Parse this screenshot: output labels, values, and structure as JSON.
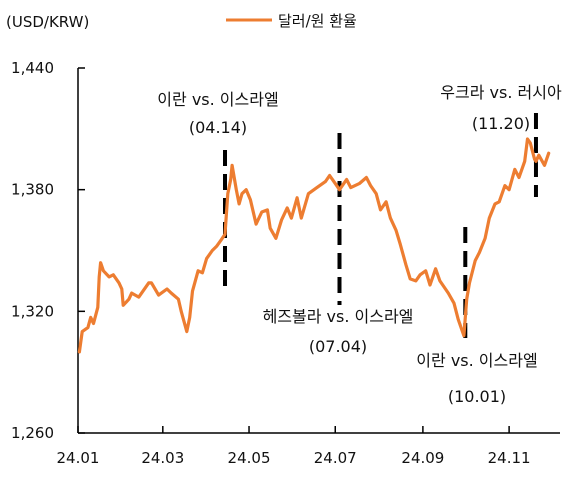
{
  "chart_data": {
    "type": "line",
    "title": "",
    "ylabel": "(USD/KRW)",
    "xlabel": "",
    "ylim": [
      1260,
      1440
    ],
    "yticks": [
      1260,
      1320,
      1380,
      1440
    ],
    "ytick_labels": [
      "1,260",
      "1,320",
      "1,380",
      "1,440"
    ],
    "xticks": [
      "24.01",
      "24.03",
      "24.05",
      "24.07",
      "24.09",
      "24.11"
    ],
    "legend": {
      "position": "top-center",
      "label": "달러/원 환율"
    },
    "grid": false,
    "series": [
      {
        "name": "달러/원 환율",
        "color": "#ED7D31",
        "points": [
          [
            "2024-01-02",
            1300
          ],
          [
            "2024-01-04",
            1310
          ],
          [
            "2024-01-08",
            1312
          ],
          [
            "2024-01-10",
            1317
          ],
          [
            "2024-01-12",
            1314
          ],
          [
            "2024-01-15",
            1322
          ],
          [
            "2024-01-16",
            1337
          ],
          [
            "2024-01-17",
            1344
          ],
          [
            "2024-01-19",
            1340
          ],
          [
            "2024-01-23",
            1337
          ],
          [
            "2024-01-26",
            1338
          ],
          [
            "2024-01-30",
            1334
          ],
          [
            "2024-02-01",
            1331
          ],
          [
            "2024-02-02",
            1323
          ],
          [
            "2024-02-06",
            1326
          ],
          [
            "2024-02-08",
            1329
          ],
          [
            "2024-02-13",
            1327
          ],
          [
            "2024-02-16",
            1330
          ],
          [
            "2024-02-20",
            1334
          ],
          [
            "2024-02-22",
            1334
          ],
          [
            "2024-02-27",
            1328
          ],
          [
            "2024-03-04",
            1331
          ],
          [
            "2024-03-07",
            1329
          ],
          [
            "2024-03-12",
            1326
          ],
          [
            "2024-03-14",
            1320
          ],
          [
            "2024-03-18",
            1310
          ],
          [
            "2024-03-20",
            1317
          ],
          [
            "2024-03-22",
            1330
          ],
          [
            "2024-03-26",
            1340
          ],
          [
            "2024-03-29",
            1339
          ],
          [
            "2024-04-01",
            1346
          ],
          [
            "2024-04-05",
            1350
          ],
          [
            "2024-04-08",
            1352
          ],
          [
            "2024-04-11",
            1355
          ],
          [
            "2024-04-14",
            1358
          ],
          [
            "2024-04-16",
            1378
          ],
          [
            "2024-04-18",
            1385
          ],
          [
            "2024-04-19",
            1392
          ],
          [
            "2024-04-22",
            1380
          ],
          [
            "2024-04-24",
            1373
          ],
          [
            "2024-04-26",
            1378
          ],
          [
            "2024-04-29",
            1380
          ],
          [
            "2024-05-02",
            1375
          ],
          [
            "2024-05-06",
            1363
          ],
          [
            "2024-05-10",
            1369
          ],
          [
            "2024-05-14",
            1370
          ],
          [
            "2024-05-16",
            1361
          ],
          [
            "2024-05-20",
            1356
          ],
          [
            "2024-05-24",
            1365
          ],
          [
            "2024-05-28",
            1371
          ],
          [
            "2024-05-31",
            1366
          ],
          [
            "2024-06-04",
            1376
          ],
          [
            "2024-06-07",
            1366
          ],
          [
            "2024-06-12",
            1378
          ],
          [
            "2024-06-18",
            1381
          ],
          [
            "2024-06-24",
            1384
          ],
          [
            "2024-06-27",
            1387
          ],
          [
            "2024-07-01",
            1383
          ],
          [
            "2024-07-04",
            1380
          ],
          [
            "2024-07-09",
            1385
          ],
          [
            "2024-07-12",
            1381
          ],
          [
            "2024-07-18",
            1383
          ],
          [
            "2024-07-23",
            1386
          ],
          [
            "2024-07-26",
            1382
          ],
          [
            "2024-07-30",
            1378
          ],
          [
            "2024-08-02",
            1370
          ],
          [
            "2024-08-06",
            1374
          ],
          [
            "2024-08-09",
            1366
          ],
          [
            "2024-08-13",
            1360
          ],
          [
            "2024-08-16",
            1353
          ],
          [
            "2024-08-20",
            1343
          ],
          [
            "2024-08-23",
            1336
          ],
          [
            "2024-08-27",
            1335
          ],
          [
            "2024-08-30",
            1338
          ],
          [
            "2024-09-03",
            1340
          ],
          [
            "2024-09-06",
            1333
          ],
          [
            "2024-09-10",
            1341
          ],
          [
            "2024-09-13",
            1335
          ],
          [
            "2024-09-19",
            1329
          ],
          [
            "2024-09-23",
            1324
          ],
          [
            "2024-09-26",
            1316
          ],
          [
            "2024-09-30",
            1308
          ],
          [
            "2024-10-02",
            1326
          ],
          [
            "2024-10-04",
            1334
          ],
          [
            "2024-10-08",
            1345
          ],
          [
            "2024-10-11",
            1349
          ],
          [
            "2024-10-15",
            1356
          ],
          [
            "2024-10-18",
            1366
          ],
          [
            "2024-10-22",
            1373
          ],
          [
            "2024-10-25",
            1374
          ],
          [
            "2024-10-29",
            1382
          ],
          [
            "2024-11-01",
            1380
          ],
          [
            "2024-11-05",
            1390
          ],
          [
            "2024-11-08",
            1386
          ],
          [
            "2024-11-12",
            1394
          ],
          [
            "2024-11-14",
            1405
          ],
          [
            "2024-11-16",
            1403
          ],
          [
            "2024-11-19",
            1395
          ],
          [
            "2024-11-20",
            1394
          ],
          [
            "2024-11-22",
            1397
          ],
          [
            "2024-11-26",
            1392
          ],
          [
            "2024-11-29",
            1398
          ]
        ]
      }
    ],
    "events": [
      {
        "date": "2024-04-14",
        "label": "이란 vs. 이스라엘",
        "date_label": "(04.14)",
        "label_side": "above"
      },
      {
        "date": "2024-07-04",
        "label": "헤즈볼라 vs. 이스라엘",
        "date_label": "(07.04)",
        "label_side": "below"
      },
      {
        "date": "2024-10-01",
        "label": "이란 vs. 이스라엘",
        "date_label": "(10.01)",
        "label_side": "below"
      },
      {
        "date": "2024-11-20",
        "label": "우크라 vs. 러시아",
        "date_label": "(11.20)",
        "label_side": "above"
      }
    ]
  }
}
